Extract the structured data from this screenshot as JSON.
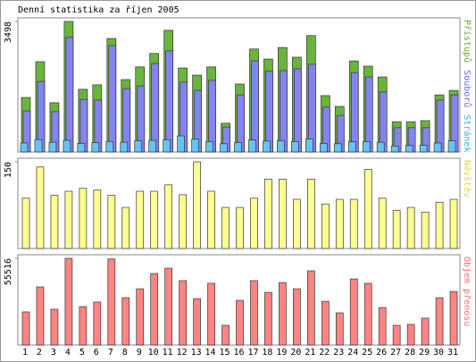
{
  "chart_data": [
    {
      "type": "bar",
      "title": "Denní statistika za říjen 2005",
      "ylim": [
        0,
        3498
      ],
      "yticks": [
        3498
      ],
      "series": [
        {
          "name": "Přístupů",
          "color": "#6ab43c",
          "values": [
            1460,
            2420,
            1320,
            3498,
            1680,
            1800,
            3040,
            1940,
            2280,
            2640,
            3260,
            2250,
            2060,
            2280,
            770,
            1820,
            2760,
            2490,
            2800,
            2540,
            3120,
            1510,
            1220,
            2440,
            2300,
            2010,
            810,
            810,
            840,
            1530,
            1650
          ]
        },
        {
          "name": "Souborů",
          "color": "#8484f0",
          "values": [
            1100,
            1890,
            1080,
            3070,
            1410,
            1390,
            2850,
            1700,
            1770,
            2370,
            2710,
            1870,
            1650,
            1920,
            670,
            1530,
            2440,
            2160,
            2180,
            2230,
            2350,
            1200,
            980,
            2130,
            2010,
            1610,
            650,
            650,
            650,
            1390,
            1530
          ]
        },
        {
          "name": "Stránek",
          "color": "#66c4f4",
          "values": [
            240,
            330,
            260,
            310,
            230,
            250,
            280,
            260,
            300,
            310,
            330,
            430,
            340,
            280,
            220,
            250,
            320,
            290,
            300,
            280,
            350,
            230,
            220,
            270,
            280,
            260,
            160,
            170,
            180,
            240,
            300
          ]
        }
      ]
    },
    {
      "type": "bar",
      "ylim": [
        0,
        150
      ],
      "yticks": [
        150
      ],
      "series": [
        {
          "name": "Návštěv",
          "color": "#ffff90",
          "values": [
            87,
            141,
            92,
            99,
            104,
            101,
            92,
            71,
            99,
            99,
            110,
            93,
            150,
            99,
            71,
            71,
            87,
            120,
            120,
            85,
            120,
            77,
            85,
            85,
            137,
            87,
            66,
            71,
            63,
            80,
            85
          ]
        }
      ]
    },
    {
      "type": "bar",
      "ylim": [
        0,
        55516
      ],
      "yticks": [
        55516
      ],
      "series": [
        {
          "name": "Objem přenosu",
          "color": "#ff8484",
          "values": [
            21200,
            37200,
            22900,
            55516,
            24600,
            27500,
            55100,
            30300,
            36000,
            45800,
            49200,
            41200,
            29700,
            39500,
            12600,
            28600,
            41200,
            33700,
            40000,
            36000,
            47500,
            28000,
            20600,
            42300,
            39500,
            24000,
            12600,
            13200,
            17200,
            30300,
            34300
          ]
        }
      ],
      "categories": [
        "1",
        "2",
        "3",
        "4",
        "5",
        "6",
        "7",
        "8",
        "9",
        "10",
        "11",
        "12",
        "13",
        "14",
        "15",
        "16",
        "17",
        "18",
        "19",
        "20",
        "21",
        "22",
        "23",
        "24",
        "25",
        "26",
        "27",
        "28",
        "29",
        "30",
        "31"
      ],
      "highlighted": [
        "1",
        "2",
        "8",
        "9",
        "15",
        "16",
        "22",
        "23",
        "29",
        "30"
      ],
      "highlight_color": "#5fa02a"
    }
  ]
}
